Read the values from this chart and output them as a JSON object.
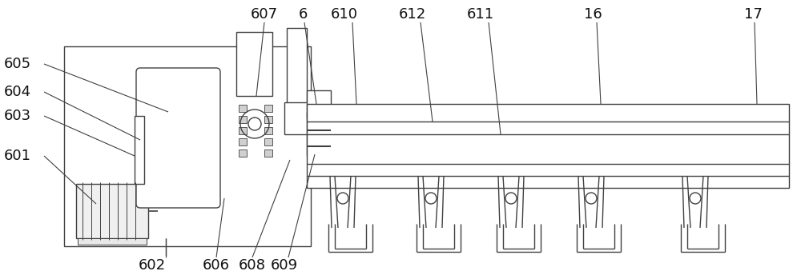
{
  "bg_color": "#ffffff",
  "line_color": "#404040",
  "lw": 1.0,
  "fig_width": 10.0,
  "fig_height": 3.49
}
